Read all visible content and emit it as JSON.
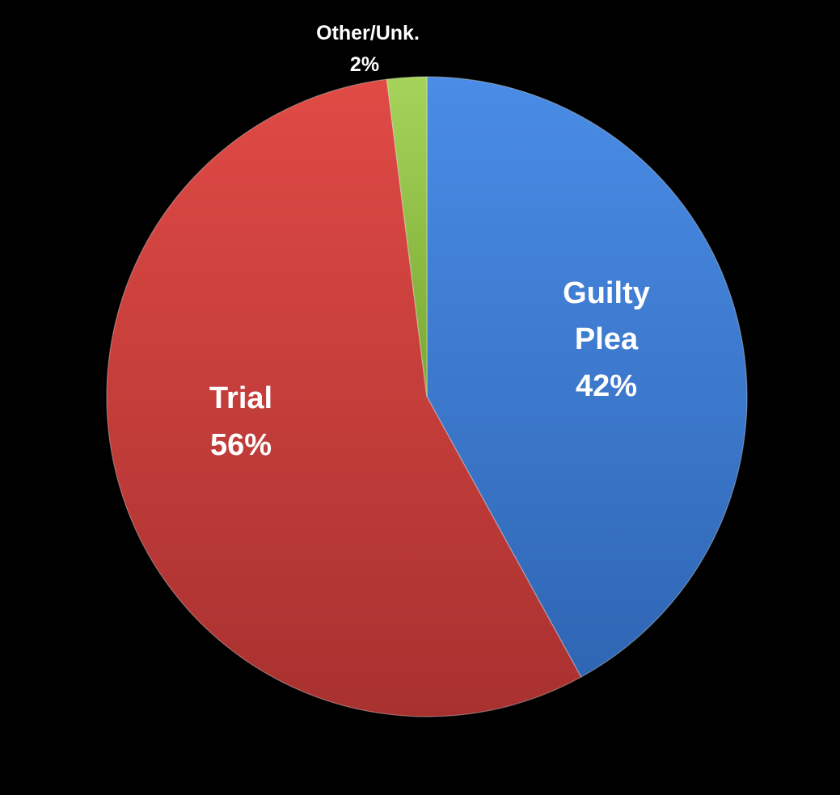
{
  "chart_data": {
    "type": "pie",
    "title": "",
    "slices": [
      {
        "label": "Guilty Plea",
        "label_lines": [
          "Guilty",
          "Plea"
        ],
        "percent_label": "42%",
        "value": 42,
        "color": "#3f7fd6"
      },
      {
        "label": "Trial",
        "label_lines": [
          "Trial"
        ],
        "percent_label": "56%",
        "value": 56,
        "color": "#cc3d3a"
      },
      {
        "label": "Other/Unk.",
        "label_lines": [
          "Other/Unk."
        ],
        "percent_label": "2%",
        "value": 2,
        "color": "#8fc043"
      }
    ],
    "start_angle_deg": 0,
    "direction": "clockwise",
    "legend": "none",
    "labels_placement": "inside, except Other/Unk. outside above"
  }
}
